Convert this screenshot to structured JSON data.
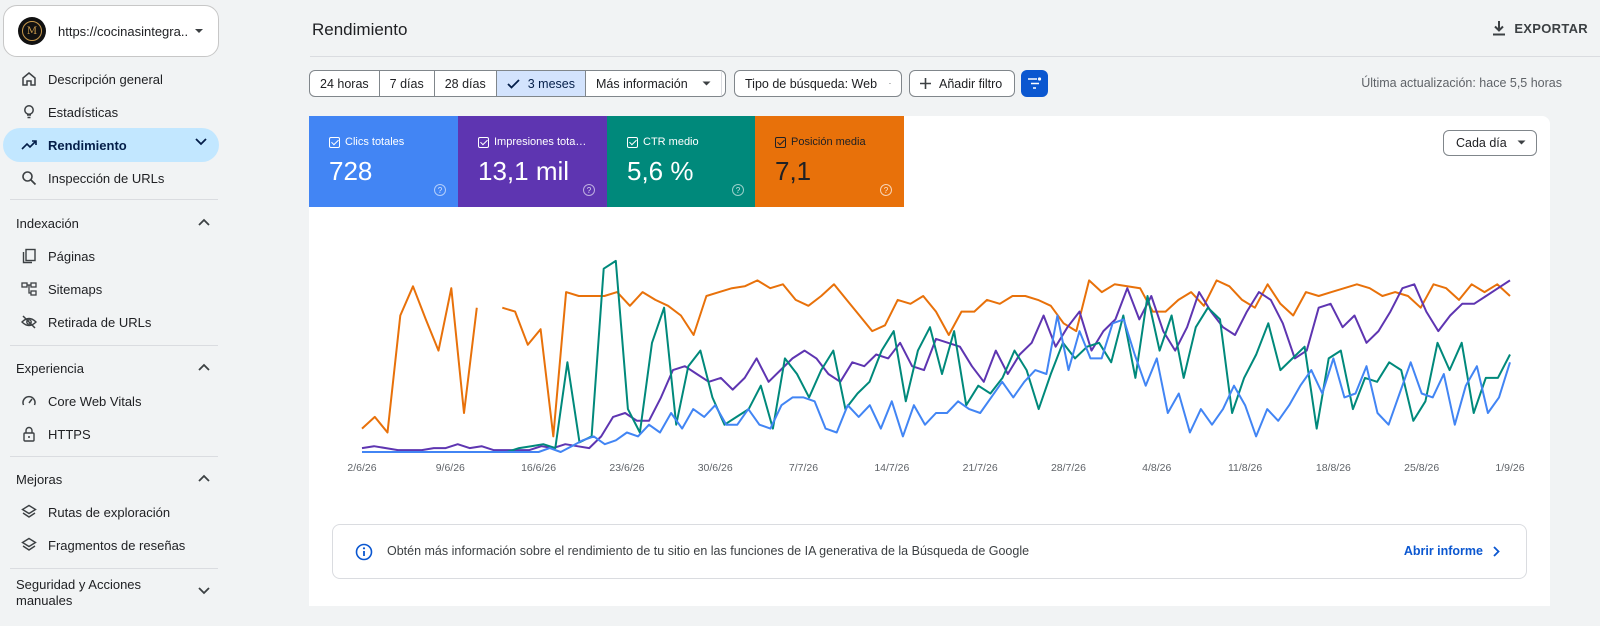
{
  "sidebar": {
    "property_url": "https://cocinasintegra...",
    "logo_letter": "M",
    "items_top": [
      {
        "label": "Descripción general",
        "icon": "home-icon"
      },
      {
        "label": "Estadísticas",
        "icon": "lightbulb-icon"
      },
      {
        "label": "Rendimiento",
        "icon": "trending-up-icon",
        "active": true
      },
      {
        "label": "Inspección de URLs",
        "icon": "search-icon"
      }
    ],
    "sections": [
      {
        "title": "Indexación",
        "items": [
          {
            "label": "Páginas",
            "icon": "pages-icon"
          },
          {
            "label": "Sitemaps",
            "icon": "sitemap-icon"
          },
          {
            "label": "Retirada de URLs",
            "icon": "eye-off-icon"
          }
        ]
      },
      {
        "title": "Experiencia",
        "items": [
          {
            "label": "Core Web Vitals",
            "icon": "gauge-icon"
          },
          {
            "label": "HTTPS",
            "icon": "lock-icon"
          }
        ]
      },
      {
        "title": "Mejoras",
        "items": [
          {
            "label": "Rutas de exploración",
            "icon": "layers-icon"
          },
          {
            "label": "Fragmentos de reseñas",
            "icon": "layers-icon"
          }
        ]
      }
    ],
    "collapsed_section_line1": "Seguridad y Acciones",
    "collapsed_section_line2": "manuales"
  },
  "header": {
    "title": "Rendimiento",
    "export_label": "EXPORTAR"
  },
  "toolbar": {
    "ranges": [
      "24 horas",
      "7 días",
      "28 días",
      "3 meses"
    ],
    "selected_range": "3 meses",
    "more_label": "Más información",
    "search_type_label": "Tipo de búsqueda: Web",
    "add_filter_label": "Añadir filtro",
    "last_update": "Última actualización: hace 5,5 horas"
  },
  "metrics": [
    {
      "label": "Clics totales",
      "value": "728",
      "color": "#4285f4"
    },
    {
      "label": "Impresiones totales",
      "value": "13,1 mil",
      "color": "#5e35b1"
    },
    {
      "label": "CTR medio",
      "value": "5,6 %",
      "color": "#00897b"
    },
    {
      "label": "Posición media",
      "value": "7,1",
      "color": "#e8710a"
    }
  ],
  "granularity_label": "Cada día",
  "chart_data": {
    "type": "line",
    "x_ticks": [
      "2/6/26",
      "9/6/26",
      "16/6/26",
      "23/6/26",
      "30/6/26",
      "7/7/26",
      "14/7/26",
      "21/7/26",
      "28/7/26",
      "4/8/26",
      "11/8/26",
      "18/8/26",
      "25/8/26",
      "1/9/26"
    ],
    "x_range": [
      "2/6/26",
      "1/9/26"
    ],
    "grid": false,
    "legend": "metric tiles above chart",
    "note": "Each series is drawn on its own independent scale; values are relative heights (0-100).",
    "series": [
      {
        "name": "Posición media",
        "color": "#e8710a",
        "values": [
          12,
          18,
          10,
          70,
          85,
          68,
          52,
          84,
          20,
          74,
          null,
          74,
          72,
          55,
          63,
          8,
          82,
          80,
          80,
          80,
          82,
          75,
          82,
          78,
          75,
          70,
          60,
          80,
          82,
          84,
          85,
          88,
          84,
          86,
          78,
          75,
          80,
          86,
          78,
          70,
          62,
          65,
          78,
          76,
          80,
          72,
          60,
          72,
          72,
          78,
          76,
          80,
          80,
          78,
          75,
          66,
          62,
          88,
          82,
          86,
          85,
          84,
          72,
          72,
          78,
          82,
          75,
          88,
          85,
          78,
          74,
          86,
          76,
          70,
          82,
          80,
          82,
          84,
          86,
          84,
          80,
          82,
          80,
          74,
          86,
          84,
          78,
          86,
          82,
          86,
          80
        ]
      },
      {
        "name": "Impresiones totales",
        "color": "#5e35b1",
        "values": [
          2,
          3,
          2,
          1,
          1,
          1,
          2,
          2,
          4,
          2,
          3,
          1,
          1,
          1,
          1,
          3,
          2,
          4,
          3,
          2,
          8,
          18,
          20,
          16,
          16,
          28,
          42,
          44,
          40,
          36,
          38,
          32,
          38,
          48,
          36,
          42,
          48,
          52,
          48,
          40,
          36,
          46,
          44,
          50,
          48,
          56,
          44,
          42,
          58,
          56,
          54,
          44,
          36,
          52,
          40,
          50,
          56,
          70,
          54,
          64,
          72,
          52,
          62,
          68,
          84,
          68,
          80,
          62,
          52,
          64,
          82,
          72,
          64,
          60,
          72,
          82,
          78,
          66,
          48,
          52,
          74,
          76,
          64,
          70,
          56,
          62,
          72,
          84,
          86,
          72,
          62,
          70,
          76,
          76,
          80,
          84,
          88
        ]
      },
      {
        "name": "CTR medio",
        "color": "#00897b",
        "values": [
          0,
          0,
          0,
          0,
          0,
          0,
          0,
          0,
          0,
          0,
          0,
          0,
          0,
          2,
          3,
          4,
          2,
          46,
          5,
          8,
          94,
          98,
          22,
          10,
          56,
          74,
          14,
          44,
          52,
          28,
          14,
          18,
          22,
          34,
          12,
          48,
          40,
          28,
          42,
          52,
          22,
          30,
          36,
          52,
          62,
          26,
          52,
          64,
          40,
          62,
          24,
          34,
          30,
          38,
          52,
          42,
          22,
          40,
          56,
          48,
          54,
          56,
          46,
          70,
          38,
          80,
          52,
          70,
          38,
          64,
          74,
          68,
          20,
          38,
          50,
          66,
          42,
          48,
          54,
          12,
          48,
          52,
          22,
          38,
          36,
          46,
          42,
          16,
          26,
          56,
          42,
          56,
          20,
          38,
          38,
          50
        ]
      },
      {
        "name": "Clics totales",
        "color": "#4285f4",
        "values": [
          0,
          0,
          0,
          0,
          0,
          0,
          0,
          0,
          0,
          0,
          0,
          0,
          0,
          0,
          0,
          0,
          0,
          2,
          0,
          3,
          6,
          8,
          4,
          6,
          10,
          8,
          14,
          10,
          20,
          12,
          22,
          18,
          24,
          14,
          14,
          22,
          14,
          12,
          24,
          28,
          28,
          26,
          12,
          10,
          24,
          18,
          24,
          12,
          26,
          8,
          24,
          14,
          20,
          20,
          26,
          22,
          20,
          28,
          36,
          28,
          36,
          42,
          40,
          70,
          42,
          62,
          48,
          48,
          66,
          68,
          50,
          34,
          48,
          20,
          30,
          10,
          22,
          14,
          22,
          34,
          24,
          8,
          22,
          16,
          24,
          34,
          42,
          30,
          48,
          28,
          30,
          44,
          20,
          14,
          30,
          46,
          30,
          28,
          40,
          14,
          34,
          44,
          20,
          28,
          46
        ]
      }
    ]
  },
  "info_banner": {
    "text": "Obtén más información sobre el rendimiento de tu sitio en las funciones de IA generativa de la Búsqueda de Google",
    "link_label": "Abrir informe"
  }
}
